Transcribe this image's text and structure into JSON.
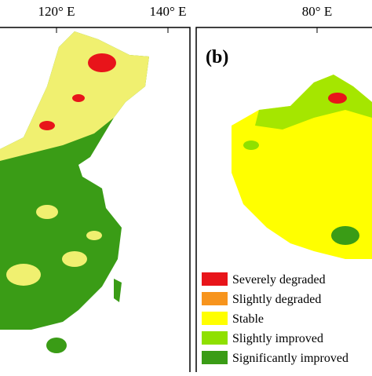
{
  "top_labels": [
    "120° E",
    "140° E",
    "80° E"
  ],
  "panel_b": {
    "label": "(b)"
  },
  "legend": {
    "items": [
      {
        "label": "Severely degraded",
        "color": "#e8141a"
      },
      {
        "label": "Slightly degraded",
        "color": "#f7941d"
      },
      {
        "label": "Stable",
        "color": "#ffff00"
      },
      {
        "label": "Slightly improved",
        "color": "#8fe000"
      },
      {
        "label": "Significantly improved",
        "color": "#3a9c16"
      }
    ]
  }
}
